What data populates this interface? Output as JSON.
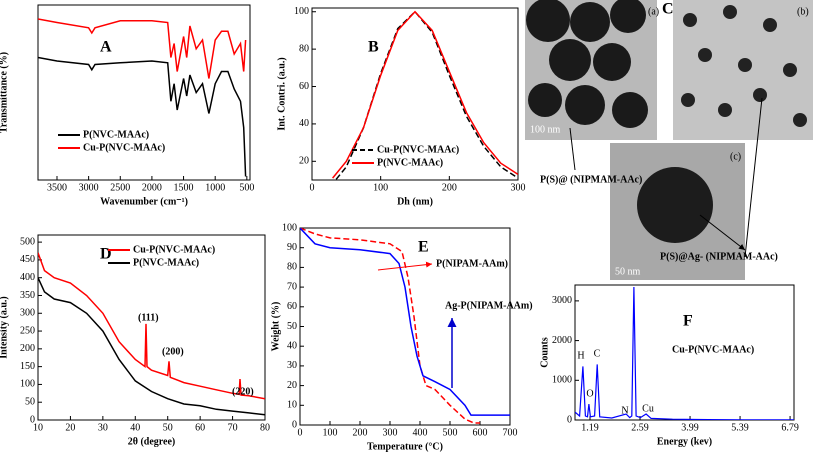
{
  "chart_data": [
    {
      "type": "line",
      "label": "A",
      "x_label": "Wavenumber (cm⁻¹)",
      "y_label": "Transmittance (%)",
      "xlim": [
        3800,
        450
      ],
      "ylim": [
        0,
        100
      ],
      "xticks": [
        3500,
        3000,
        2500,
        2000,
        1500,
        1000,
        500
      ],
      "legend": "lower left",
      "x": [
        3800,
        3500,
        3000,
        2950,
        2900,
        2500,
        2000,
        1750,
        1700,
        1650,
        1600,
        1500,
        1450,
        1400,
        1300,
        1200,
        1100,
        1000,
        900,
        800,
        700,
        600,
        550,
        520
      ],
      "series": [
        {
          "name": "P(NVC-MAAc)",
          "color": "#000000",
          "line_style": "solid",
          "values": [
            70,
            68,
            66,
            63,
            66,
            67,
            68,
            67,
            45,
            55,
            40,
            58,
            48,
            60,
            50,
            55,
            38,
            55,
            62,
            62,
            52,
            45,
            30,
            2
          ]
        },
        {
          "name": "Cu-P(NVC-MAAc)",
          "color": "#ff0000",
          "line_style": "solid",
          "values": [
            92,
            90,
            87,
            84,
            87,
            91,
            91,
            90,
            70,
            78,
            62,
            82,
            70,
            88,
            75,
            80,
            58,
            80,
            85,
            85,
            72,
            78,
            62,
            80
          ]
        }
      ]
    },
    {
      "type": "line",
      "label": "B",
      "x_label": "Dh (nm)",
      "y_label": "Int. Contri. (a.u.)",
      "xlim": [
        0,
        300
      ],
      "ylim": [
        10,
        102
      ],
      "xticks": [
        0,
        100,
        200,
        300
      ],
      "yticks": [
        20,
        40,
        60,
        80,
        100
      ],
      "legend": "lower center",
      "x": [
        0,
        30,
        50,
        75,
        100,
        125,
        150,
        175,
        200,
        225,
        250,
        275,
        300
      ],
      "series": [
        {
          "name": "Cu-P(NVC-MAAc)",
          "color": "#000000",
          "line_style": "dashed",
          "values": [
            5,
            8,
            17,
            38,
            67,
            91,
            100,
            89,
            66,
            44,
            28,
            17,
            11
          ]
        },
        {
          "name": "P(NVC-MAAc)",
          "color": "#ff0000",
          "line_style": "solid",
          "values": [
            null,
            11,
            20,
            38,
            66,
            90,
            100,
            90,
            68,
            46,
            30,
            19,
            13
          ]
        }
      ]
    },
    {
      "type": "line",
      "label": "D",
      "x_label": "2θ (degree)",
      "y_label": "Intensity (a.u.)",
      "xlim": [
        10,
        80
      ],
      "ylim": [
        0,
        520
      ],
      "xticks": [
        10,
        20,
        30,
        40,
        50,
        60,
        70,
        80
      ],
      "yticks": [
        0,
        50,
        100,
        150,
        200,
        250,
        300,
        350,
        400,
        450,
        500
      ],
      "legend": "upper center",
      "annotations": [
        "(111)",
        "(200)",
        "(220)"
      ],
      "series": [
        {
          "name": "Cu-P(NVC-MAAc)",
          "color": "#ff0000",
          "line_style": "solid",
          "x": [
            10,
            12,
            15,
            20,
            25,
            30,
            35,
            40,
            43,
            43.3,
            43.6,
            45,
            50,
            50.4,
            50.8,
            55,
            60,
            65,
            70,
            72,
            72.3,
            72.6,
            75,
            80
          ],
          "values": [
            470,
            420,
            400,
            385,
            350,
            300,
            220,
            170,
            150,
            270,
            150,
            140,
            125,
            165,
            120,
            105,
            95,
            85,
            75,
            72,
            115,
            70,
            68,
            60
          ]
        },
        {
          "name": "P(NVC-MAAc)",
          "color": "#000000",
          "line_style": "solid",
          "x": [
            10,
            12,
            15,
            20,
            25,
            30,
            35,
            40,
            45,
            50,
            55,
            60,
            65,
            70,
            75,
            80
          ],
          "values": [
            400,
            360,
            340,
            330,
            300,
            250,
            170,
            110,
            80,
            60,
            45,
            40,
            30,
            25,
            20,
            15
          ]
        }
      ]
    },
    {
      "type": "line",
      "label": "E",
      "x_label": "Temperature (°C)",
      "y_label": "Weight (%)",
      "xlim": [
        0,
        700
      ],
      "ylim": [
        0,
        100
      ],
      "xticks": [
        0,
        100,
        200,
        300,
        400,
        500,
        600,
        700
      ],
      "yticks": [
        0,
        10,
        20,
        30,
        40,
        50,
        60,
        70,
        80,
        90,
        100
      ],
      "legend": "annotated",
      "series": [
        {
          "name": "P(NIPAM-AAm)",
          "color": "#ff0000",
          "line_style": "dashed",
          "x": [
            0,
            50,
            100,
            200,
            300,
            340,
            360,
            380,
            400,
            420,
            450,
            500,
            550,
            580,
            600
          ],
          "values": [
            100,
            97,
            95,
            94,
            92,
            88,
            75,
            55,
            30,
            20,
            18,
            10,
            3,
            1,
            1
          ]
        },
        {
          "name": "Ag-P(NIPAM-AAm)",
          "color": "#0000ff",
          "line_style": "solid",
          "x": [
            0,
            50,
            100,
            200,
            300,
            330,
            350,
            370,
            390,
            410,
            450,
            500,
            550,
            570,
            600,
            700
          ],
          "values": [
            100,
            92,
            90,
            89,
            87,
            82,
            70,
            50,
            35,
            25,
            22,
            18,
            10,
            5,
            5,
            5
          ]
        }
      ]
    },
    {
      "type": "line",
      "label": "F",
      "x_label": "Energy (kev)",
      "y_label": "Counts",
      "annotation": "Cu-P(NVC-MAAc)",
      "xlim": [
        0.77,
        6.9
      ],
      "ylim": [
        0,
        3400
      ],
      "xticks": [
        1.19,
        2.59,
        3.99,
        5.39,
        6.79
      ],
      "yticks": [
        0,
        1000,
        2000,
        3000
      ],
      "peak_labels": [
        "H",
        "O",
        "C",
        "N",
        "Cu"
      ],
      "series": [
        {
          "name": "Cu-P(NVC-MAAc)",
          "color": "#0000ff",
          "line_style": "solid",
          "x": [
            0.77,
            0.9,
            0.99,
            1.06,
            1.12,
            1.16,
            1.2,
            1.32,
            1.39,
            1.46,
            1.8,
            2.2,
            2.3,
            2.36,
            2.42,
            2.48,
            2.6,
            2.76,
            2.9,
            3.5,
            4.5,
            5.5,
            6.9
          ],
          "values": [
            200,
            100,
            1350,
            100,
            80,
            400,
            80,
            100,
            1400,
            80,
            50,
            150,
            60,
            100,
            3350,
            100,
            60,
            150,
            40,
            20,
            10,
            5,
            5
          ]
        }
      ]
    }
  ],
  "figure_c": {
    "label": "C",
    "panels": [
      {
        "label": "(a)",
        "scale_bar": "100 nm"
      },
      {
        "label": "(b)"
      },
      {
        "label": "(c)",
        "scale_bar": "50 nm"
      }
    ],
    "annotations": [
      "P(S)@ (NIPMAM-AAc)",
      "P(S)@Ag- (NIPMAM-AAc)"
    ]
  }
}
